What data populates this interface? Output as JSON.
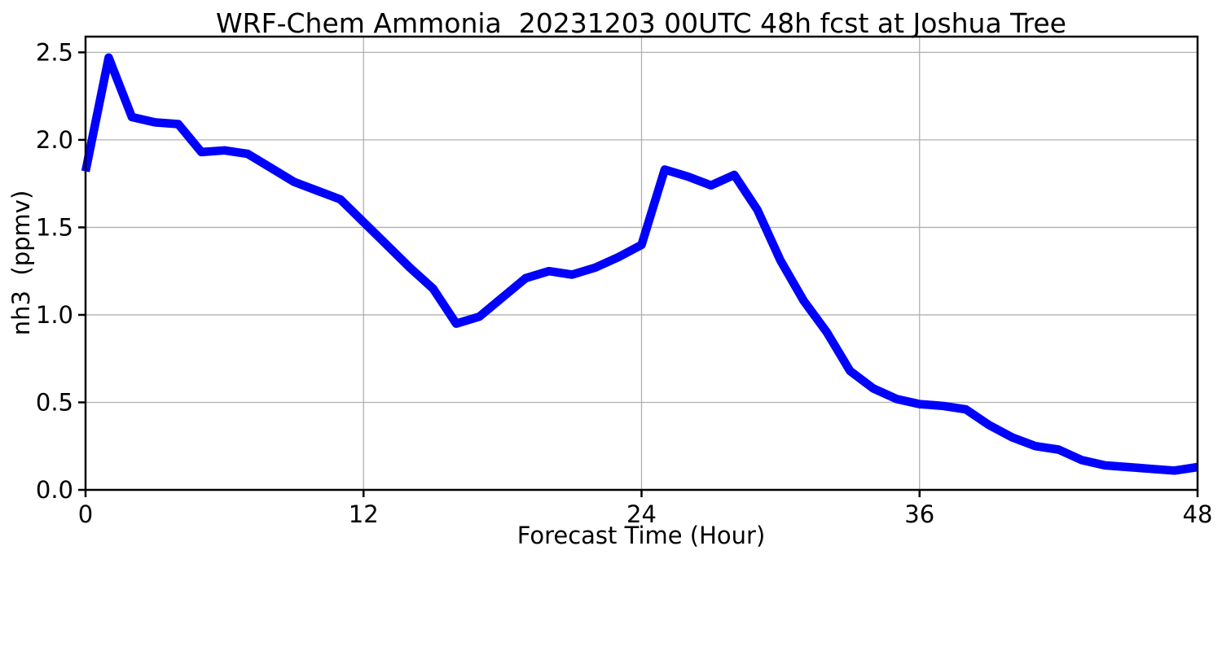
{
  "chart_data": {
    "type": "line",
    "title": "WRF-Chem Ammonia  20231203 00UTC 48h fcst at Joshua Tree",
    "xlabel": "Forecast Time (Hour)",
    "ylabel": "nh3  (ppmv)",
    "series": [
      {
        "name": "nh3",
        "x": [
          0,
          1,
          2,
          3,
          4,
          5,
          6,
          7,
          8,
          9,
          10,
          11,
          12,
          13,
          14,
          15,
          16,
          17,
          18,
          19,
          20,
          21,
          22,
          23,
          24,
          25,
          26,
          27,
          28,
          29,
          30,
          31,
          32,
          33,
          34,
          35,
          36,
          37,
          38,
          39,
          40,
          41,
          42,
          43,
          44,
          45,
          46,
          47,
          48
        ],
        "values": [
          1.82,
          2.47,
          2.13,
          2.1,
          2.09,
          1.93,
          1.94,
          1.92,
          1.84,
          1.76,
          1.71,
          1.66,
          1.53,
          1.4,
          1.27,
          1.15,
          0.95,
          0.99,
          1.1,
          1.21,
          1.25,
          1.23,
          1.27,
          1.33,
          1.4,
          1.83,
          1.79,
          1.74,
          1.8,
          1.6,
          1.31,
          1.08,
          0.9,
          0.68,
          0.58,
          0.52,
          0.49,
          0.48,
          0.46,
          0.37,
          0.3,
          0.25,
          0.23,
          0.17,
          0.14,
          0.13,
          0.12,
          0.11,
          0.13
        ]
      }
    ],
    "xlim": [
      0,
      48
    ],
    "ylim": [
      0,
      2.59
    ],
    "xticks": [
      0,
      12,
      24,
      36,
      48
    ],
    "xtick_labels": [
      "0",
      "12",
      "24",
      "36",
      "48"
    ],
    "yticks": [
      0.0,
      0.5,
      1.0,
      1.5,
      2.0,
      2.5
    ],
    "ytick_labels": [
      "0.0",
      "0.5",
      "1.0",
      "1.5",
      "2.0",
      "2.5"
    ],
    "grid": "on",
    "legend": "none",
    "line_color": "#0000ff",
    "line_width": 10.5,
    "grid_color": "#b0b0b0",
    "axis_color": "#000000",
    "background_color": "#ffffff"
  }
}
